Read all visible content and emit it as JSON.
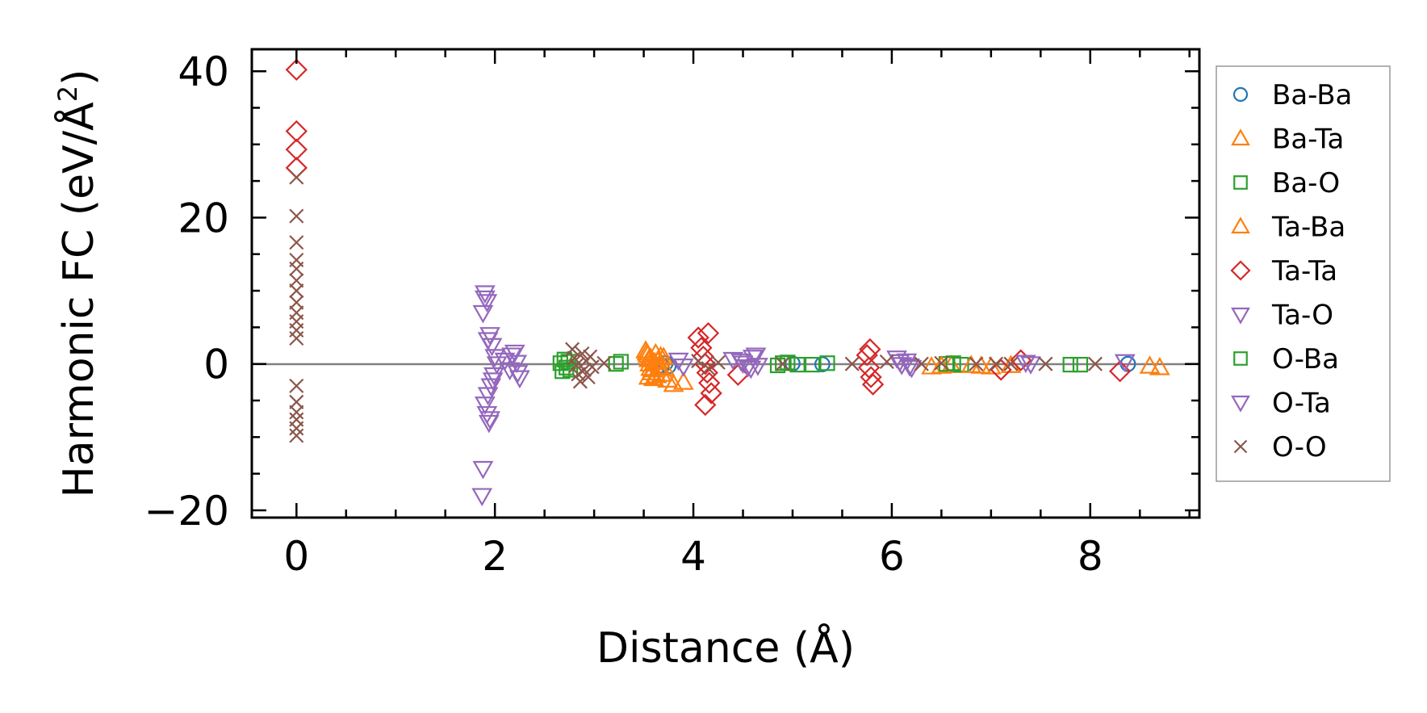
{
  "chart_data": {
    "type": "scatter",
    "title": "",
    "xlabel": "Distance (Å)",
    "ylabel": "Harmonic FC (eV/Å²)",
    "ylabel_parts": {
      "main": "Harmonic FC (eV/Å",
      "sup": "2",
      "close": ")"
    },
    "xlim": [
      -0.45,
      9.1
    ],
    "ylim": [
      -21,
      43
    ],
    "xticks": [
      0,
      2,
      4,
      6,
      8
    ],
    "xtick_labels": [
      "0",
      "2",
      "4",
      "6",
      "8"
    ],
    "yticks": [
      -20,
      0,
      20,
      40
    ],
    "ytick_labels": [
      "−20",
      "0",
      "20",
      "40"
    ],
    "reference_line_y": 0,
    "legend_position": "right, outside plot",
    "series": [
      {
        "name": "Ba-Ba",
        "marker": "circle",
        "color": "#1f77b4",
        "points": [
          [
            3.68,
            -0.2
          ],
          [
            3.72,
            0.1
          ],
          [
            3.75,
            -0.3
          ],
          [
            5.0,
            0.05
          ],
          [
            5.3,
            -0.05
          ],
          [
            8.38,
            0.0
          ]
        ]
      },
      {
        "name": "Ba-Ta",
        "marker": "triangle-up",
        "color": "#ff7f0e",
        "points": [
          [
            3.52,
            1.8
          ],
          [
            3.54,
            1.2
          ],
          [
            3.55,
            0.6
          ],
          [
            3.56,
            0.0
          ],
          [
            3.57,
            -0.6
          ],
          [
            3.58,
            -1.2
          ],
          [
            3.6,
            -2.0
          ],
          [
            3.62,
            1.4
          ],
          [
            3.64,
            0.4
          ],
          [
            3.66,
            -0.4
          ],
          [
            3.68,
            -1.4
          ],
          [
            3.7,
            0.9
          ],
          [
            3.74,
            -2.2
          ],
          [
            3.8,
            -2.8
          ],
          [
            3.9,
            -2.5
          ],
          [
            6.4,
            -0.4
          ],
          [
            6.6,
            -0.2
          ],
          [
            6.9,
            -0.3
          ],
          [
            7.2,
            -0.2
          ],
          [
            8.7,
            -0.5
          ]
        ]
      },
      {
        "name": "Ba-O",
        "marker": "square",
        "color": "#2ca02c",
        "points": [
          [
            2.66,
            0.1
          ],
          [
            2.68,
            -1.0
          ],
          [
            2.7,
            0.6
          ],
          [
            2.72,
            -0.5
          ],
          [
            3.27,
            0.3
          ],
          [
            4.85,
            -0.2
          ],
          [
            4.95,
            0.2
          ],
          [
            5.05,
            -0.1
          ],
          [
            5.35,
            0.1
          ],
          [
            6.55,
            0.0
          ],
          [
            6.7,
            -0.1
          ],
          [
            7.9,
            -0.1
          ]
        ]
      },
      {
        "name": "Ta-Ba",
        "marker": "triangle-up",
        "color": "#ff7f0e",
        "points": [
          [
            3.53,
            1.5
          ],
          [
            3.55,
            -1.8
          ],
          [
            3.57,
            0.8
          ],
          [
            3.59,
            -0.8
          ],
          [
            3.61,
            0.2
          ],
          [
            3.63,
            -1.6
          ],
          [
            3.67,
            1.0
          ],
          [
            3.71,
            -0.6
          ],
          [
            6.5,
            -0.3
          ],
          [
            6.8,
            -0.2
          ],
          [
            7.0,
            -0.4
          ],
          [
            8.6,
            -0.3
          ]
        ]
      },
      {
        "name": "Ta-Ta",
        "marker": "diamond",
        "color": "#d62728",
        "points": [
          [
            0.0,
            40.2
          ],
          [
            0.0,
            31.8
          ],
          [
            0.0,
            29.3
          ],
          [
            0.0,
            26.8
          ],
          [
            4.05,
            3.6
          ],
          [
            4.08,
            2.2
          ],
          [
            4.1,
            1.0
          ],
          [
            4.12,
            0.0
          ],
          [
            4.14,
            -1.2
          ],
          [
            4.16,
            -2.6
          ],
          [
            4.18,
            -4.0
          ],
          [
            4.12,
            -5.6
          ],
          [
            4.15,
            4.2
          ],
          [
            4.45,
            -1.5
          ],
          [
            5.75,
            1.2
          ],
          [
            5.77,
            -0.5
          ],
          [
            5.79,
            -1.8
          ],
          [
            5.81,
            -2.8
          ],
          [
            5.78,
            2.0
          ],
          [
            7.1,
            -0.8
          ],
          [
            7.3,
            0.5
          ],
          [
            8.3,
            -1.0
          ]
        ]
      },
      {
        "name": "Ta-O",
        "marker": "triangle-down",
        "color": "#9467bd",
        "points": [
          [
            1.9,
            9.7
          ],
          [
            1.92,
            8.5
          ],
          [
            1.88,
            7.0
          ],
          [
            1.95,
            4.0
          ],
          [
            1.97,
            2.5
          ],
          [
            2.0,
            1.0
          ],
          [
            2.02,
            0.0
          ],
          [
            1.99,
            -1.5
          ],
          [
            1.96,
            -3.0
          ],
          [
            1.93,
            -4.2
          ],
          [
            1.9,
            -5.5
          ],
          [
            1.92,
            -6.8
          ],
          [
            1.94,
            -8.0
          ],
          [
            1.88,
            -14.3
          ],
          [
            1.87,
            -18.0
          ],
          [
            2.1,
            0.5
          ],
          [
            2.15,
            -0.8
          ],
          [
            2.2,
            1.6
          ],
          [
            2.25,
            -1.9
          ],
          [
            2.22,
            0.2
          ],
          [
            3.85,
            0.5
          ],
          [
            3.9,
            -0.3
          ],
          [
            4.4,
            0.6
          ],
          [
            4.5,
            0.1
          ],
          [
            4.55,
            -0.4
          ],
          [
            4.6,
            0.9
          ],
          [
            4.65,
            -0.2
          ],
          [
            6.05,
            0.8
          ],
          [
            6.1,
            -0.1
          ],
          [
            6.15,
            0.4
          ],
          [
            6.2,
            -0.5
          ],
          [
            7.35,
            0.2
          ]
        ]
      },
      {
        "name": "O-Ba",
        "marker": "square",
        "color": "#2ca02c",
        "points": [
          [
            2.74,
            0.3
          ],
          [
            2.76,
            -0.8
          ],
          [
            3.22,
            0.0
          ],
          [
            4.9,
            0.1
          ],
          [
            5.2,
            -0.1
          ],
          [
            6.62,
            0.1
          ],
          [
            7.8,
            -0.1
          ]
        ]
      },
      {
        "name": "O-Ta",
        "marker": "triangle-down",
        "color": "#9467bd",
        "points": [
          [
            1.9,
            9.0
          ],
          [
            1.93,
            3.3
          ],
          [
            1.98,
            -2.2
          ],
          [
            1.95,
            -7.5
          ],
          [
            2.17,
            1.2
          ],
          [
            2.23,
            -1.2
          ],
          [
            4.48,
            0.4
          ],
          [
            4.58,
            -0.6
          ],
          [
            4.63,
            1.2
          ],
          [
            6.08,
            0.3
          ],
          [
            6.18,
            -0.3
          ],
          [
            7.4,
            0.0
          ],
          [
            8.35,
            0.3
          ]
        ]
      },
      {
        "name": "O-O",
        "marker": "x",
        "color": "#8c564b",
        "points": [
          [
            0.0,
            25.5
          ],
          [
            0.0,
            20.2
          ],
          [
            0.0,
            16.6
          ],
          [
            0.0,
            14.2
          ],
          [
            0.0,
            13.0
          ],
          [
            0.0,
            11.4
          ],
          [
            0.0,
            10.0
          ],
          [
            0.0,
            8.4
          ],
          [
            0.0,
            7.0
          ],
          [
            0.0,
            5.8
          ],
          [
            0.0,
            4.6
          ],
          [
            0.0,
            3.5
          ],
          [
            0.0,
            -3.0
          ],
          [
            0.0,
            -5.2
          ],
          [
            0.0,
            -6.6
          ],
          [
            0.0,
            -7.6
          ],
          [
            0.0,
            -8.8
          ],
          [
            0.0,
            -9.8
          ],
          [
            2.78,
            2.0
          ],
          [
            2.8,
            0.8
          ],
          [
            2.82,
            -0.2
          ],
          [
            2.84,
            -1.4
          ],
          [
            2.86,
            -2.4
          ],
          [
            2.88,
            1.4
          ],
          [
            2.9,
            -0.8
          ],
          [
            2.92,
            0.4
          ],
          [
            2.94,
            -1.8
          ],
          [
            2.96,
            1.0
          ],
          [
            2.98,
            -0.4
          ],
          [
            3.1,
            0.1
          ],
          [
            4.05,
            0.4
          ],
          [
            4.15,
            -0.6
          ],
          [
            4.25,
            0.2
          ],
          [
            4.9,
            0.0
          ],
          [
            5.6,
            0.0
          ],
          [
            5.95,
            0.3
          ],
          [
            6.3,
            0.0
          ],
          [
            6.5,
            0.1
          ],
          [
            6.85,
            0.0
          ],
          [
            7.05,
            0.0
          ],
          [
            7.2,
            0.0
          ],
          [
            7.55,
            0.0
          ],
          [
            8.05,
            0.0
          ]
        ]
      }
    ]
  }
}
